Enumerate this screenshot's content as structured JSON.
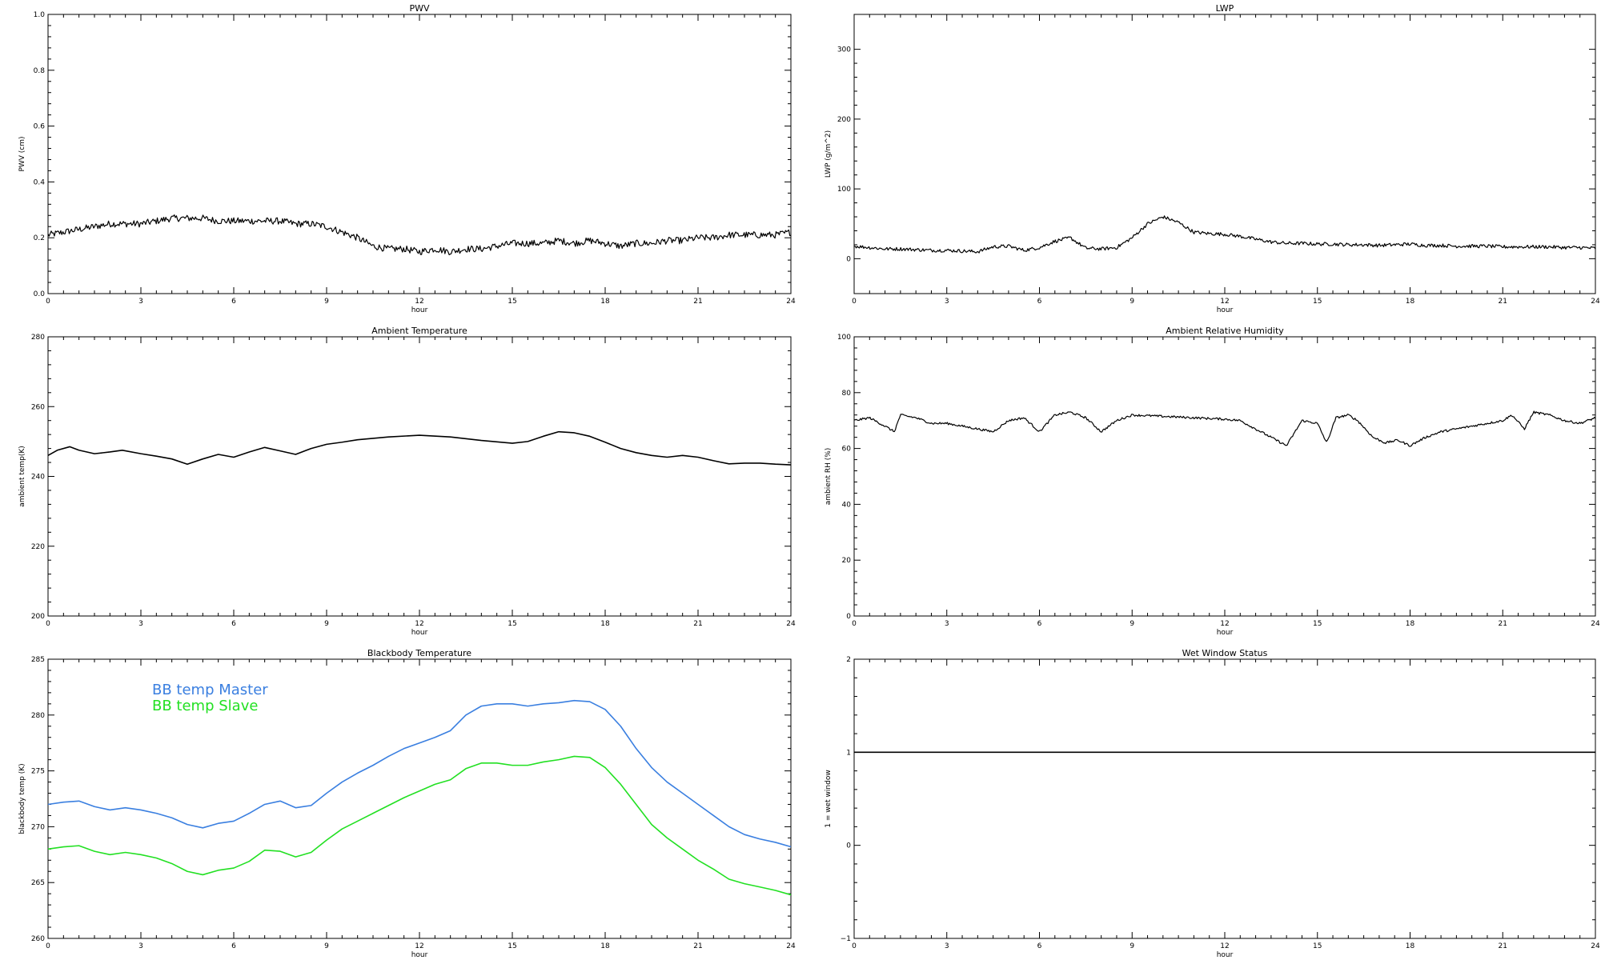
{
  "chart_data": [
    {
      "id": "pwv",
      "type": "line",
      "title": "PWV",
      "xlabel": "hour",
      "ylabel": "PWV (cm)",
      "xlim": [
        0,
        24
      ],
      "ylim": [
        0.0,
        1.0
      ],
      "xticks": [
        0,
        3,
        6,
        9,
        12,
        15,
        18,
        21,
        24
      ],
      "yticks": [
        "0.0",
        "0.2",
        "0.4",
        "0.6",
        "0.8",
        "1.0"
      ],
      "grid": false,
      "noise": 0.012,
      "series": [
        {
          "color": "#000000",
          "x": [
            0,
            0.5,
            1,
            1.5,
            2,
            2.5,
            3,
            3.5,
            4,
            4.5,
            5,
            5.5,
            6,
            6.5,
            7,
            7.5,
            8,
            8.5,
            9,
            9.5,
            10,
            10.5,
            11,
            11.5,
            12,
            12.5,
            13,
            13.5,
            14,
            14.5,
            15,
            15.5,
            16,
            16.5,
            17,
            17.5,
            18,
            18.5,
            19,
            19.5,
            20,
            20.5,
            21,
            21.5,
            22,
            22.5,
            23,
            23.5,
            24
          ],
          "y": [
            0.21,
            0.22,
            0.23,
            0.24,
            0.25,
            0.25,
            0.25,
            0.26,
            0.27,
            0.27,
            0.27,
            0.26,
            0.26,
            0.26,
            0.26,
            0.26,
            0.25,
            0.25,
            0.24,
            0.22,
            0.2,
            0.17,
            0.16,
            0.16,
            0.15,
            0.16,
            0.15,
            0.16,
            0.16,
            0.17,
            0.18,
            0.18,
            0.18,
            0.19,
            0.18,
            0.19,
            0.18,
            0.17,
            0.18,
            0.18,
            0.19,
            0.19,
            0.2,
            0.2,
            0.21,
            0.21,
            0.21,
            0.21,
            0.22
          ]
        }
      ]
    },
    {
      "id": "lwp",
      "type": "line",
      "title": "LWP",
      "xlabel": "hour",
      "ylabel": "LWP (g/m^2)",
      "xlim": [
        0,
        24
      ],
      "ylim": [
        -50,
        350
      ],
      "xticks": [
        0,
        3,
        6,
        9,
        12,
        15,
        18,
        21,
        24
      ],
      "yticks": [
        "0",
        "100",
        "200",
        "300"
      ],
      "grid": false,
      "noise": 2.5,
      "series": [
        {
          "color": "#000000",
          "x": [
            0,
            0.5,
            1,
            1.5,
            2,
            2.5,
            3,
            3.5,
            4,
            4.5,
            5,
            5.5,
            6,
            6.5,
            7,
            7.5,
            8,
            8.5,
            9,
            9.5,
            10,
            10.5,
            11,
            11.5,
            12,
            12.5,
            13,
            13.5,
            14,
            14.5,
            15,
            15.5,
            16,
            16.5,
            17,
            17.5,
            18,
            18.5,
            19,
            19.5,
            20,
            20.5,
            21,
            21.5,
            22,
            22.5,
            23,
            23.5,
            24
          ],
          "y": [
            18,
            16,
            14,
            14,
            13,
            12,
            12,
            11,
            10,
            17,
            18,
            12,
            16,
            25,
            30,
            15,
            14,
            16,
            30,
            50,
            60,
            52,
            38,
            36,
            35,
            32,
            28,
            24,
            22,
            22,
            21,
            21,
            20,
            20,
            19,
            20,
            21,
            19,
            19,
            18,
            18,
            18,
            17,
            17,
            17,
            17,
            16,
            16,
            15
          ]
        }
      ]
    },
    {
      "id": "ambient-temperature",
      "type": "line",
      "title": "Ambient Temperature",
      "xlabel": "hour",
      "ylabel": "ambient temp(K)",
      "xlim": [
        0,
        24
      ],
      "ylim": [
        200,
        280
      ],
      "xticks": [
        0,
        3,
        6,
        9,
        12,
        15,
        18,
        21,
        24
      ],
      "yticks": [
        "200",
        "220",
        "240",
        "260",
        "280"
      ],
      "grid": false,
      "noise": 0,
      "series": [
        {
          "color": "#000000",
          "x": [
            0,
            0.3,
            0.7,
            1.0,
            1.5,
            2.0,
            2.4,
            3.0,
            3.5,
            4.0,
            4.5,
            5.0,
            5.5,
            6.0,
            6.5,
            7.0,
            7.5,
            8.0,
            8.5,
            9.0,
            9.5,
            10.0,
            11.0,
            12.0,
            13.0,
            14.0,
            15.0,
            15.5,
            16.0,
            16.5,
            17.0,
            17.5,
            18.0,
            18.5,
            19.0,
            19.5,
            20.0,
            20.5,
            21.0,
            21.5,
            22.0,
            22.5,
            23.0,
            23.5,
            24.0
          ],
          "y": [
            246,
            247.5,
            248.5,
            247.5,
            246.5,
            247,
            247.5,
            246.5,
            245.8,
            245,
            243.5,
            245,
            246.3,
            245.5,
            247,
            248.3,
            247.3,
            246.3,
            248,
            249.2,
            249.8,
            250.5,
            251.3,
            251.8,
            251.3,
            250.3,
            249.5,
            250,
            251.5,
            252.8,
            252.5,
            251.5,
            249.8,
            248,
            246.8,
            246,
            245.5,
            246,
            245.5,
            244.5,
            243.6,
            243.8,
            243.8,
            243.5,
            243.3
          ]
        }
      ]
    },
    {
      "id": "ambient-relative-humidity",
      "type": "line",
      "title": "Ambient Relative Humidity",
      "xlabel": "hour",
      "ylabel": "ambient RH (%)",
      "xlim": [
        0,
        24
      ],
      "ylim": [
        0,
        100
      ],
      "xticks": [
        0,
        3,
        6,
        9,
        12,
        15,
        18,
        21,
        24
      ],
      "yticks": [
        "0",
        "20",
        "40",
        "60",
        "80",
        "100"
      ],
      "grid": false,
      "noise": 0.4,
      "series": [
        {
          "color": "#000000",
          "x": [
            0,
            0.5,
            1.0,
            1.3,
            1.5,
            2.0,
            2.5,
            3.0,
            3.5,
            4.0,
            4.5,
            5.0,
            5.5,
            6.0,
            6.5,
            7.0,
            7.5,
            8.0,
            8.5,
            9.0,
            10.0,
            11.0,
            12.0,
            12.5,
            13.0,
            13.5,
            14.0,
            14.5,
            15.0,
            15.3,
            15.6,
            16.0,
            16.3,
            16.8,
            17.2,
            17.6,
            18.0,
            18.5,
            19.0,
            19.5,
            20.0,
            20.5,
            21.0,
            21.3,
            21.7,
            22.0,
            22.5,
            23.0,
            23.5,
            24.0
          ],
          "y": [
            70,
            71,
            68,
            66,
            72,
            71,
            69,
            69,
            68,
            67,
            66,
            70,
            71,
            66,
            72,
            73,
            71,
            66,
            70,
            72,
            71.5,
            71,
            70.5,
            70,
            67,
            64,
            61,
            70,
            69,
            62,
            71,
            72,
            70,
            64,
            62,
            63,
            61,
            64,
            66,
            67,
            68,
            69,
            70,
            72,
            67,
            73,
            72,
            70,
            69,
            71
          ]
        }
      ]
    },
    {
      "id": "blackbody-temperature",
      "type": "line",
      "title": "Blackbody Temperature",
      "xlabel": "hour",
      "ylabel": "blackbody temp (K)",
      "xlim": [
        0,
        24
      ],
      "ylim": [
        260,
        285
      ],
      "xticks": [
        0,
        3,
        6,
        9,
        12,
        15,
        18,
        21,
        24
      ],
      "yticks": [
        "260",
        "265",
        "270",
        "275",
        "280",
        "285"
      ],
      "grid": false,
      "noise": 0,
      "legend": "top-left",
      "series": [
        {
          "name": "BB temp Master",
          "color": "#3a7fe0",
          "x": [
            0,
            0.5,
            1,
            1.5,
            2,
            2.5,
            3,
            3.5,
            4,
            4.5,
            5,
            5.5,
            6,
            6.5,
            7,
            7.5,
            8,
            8.5,
            9,
            9.5,
            10,
            10.5,
            11,
            11.5,
            12,
            12.5,
            13,
            13.5,
            14,
            14.5,
            15,
            15.5,
            16,
            16.5,
            17,
            17.5,
            18,
            18.5,
            19,
            19.5,
            20,
            20.5,
            21,
            21.5,
            22,
            22.5,
            23,
            23.5,
            24
          ],
          "y": [
            272,
            272.2,
            272.3,
            271.8,
            271.5,
            271.7,
            271.5,
            271.2,
            270.8,
            270.2,
            269.9,
            270.3,
            270.5,
            271.2,
            272,
            272.3,
            271.7,
            271.9,
            273,
            274,
            274.8,
            275.5,
            276.3,
            277,
            277.5,
            278,
            278.6,
            280,
            280.8,
            281,
            281,
            280.8,
            281,
            281.1,
            281.3,
            281.2,
            280.5,
            279,
            277,
            275.3,
            274,
            273,
            272,
            271,
            270,
            269.3,
            268.9,
            268.6,
            268.2
          ]
        },
        {
          "name": "BB temp Slave",
          "color": "#22e022",
          "x": [
            0,
            0.5,
            1,
            1.5,
            2,
            2.5,
            3,
            3.5,
            4,
            4.5,
            5,
            5.5,
            6,
            6.5,
            7,
            7.5,
            8,
            8.5,
            9,
            9.5,
            10,
            10.5,
            11,
            11.5,
            12,
            12.5,
            13,
            13.5,
            14,
            14.5,
            15,
            15.5,
            16,
            16.5,
            17,
            17.5,
            18,
            18.5,
            19,
            19.5,
            20,
            20.5,
            21,
            21.5,
            22,
            22.5,
            23,
            23.5,
            24
          ],
          "y": [
            268,
            268.2,
            268.3,
            267.8,
            267.5,
            267.7,
            267.5,
            267.2,
            266.7,
            266,
            265.7,
            266.1,
            266.3,
            266.9,
            267.9,
            267.8,
            267.3,
            267.7,
            268.8,
            269.8,
            270.5,
            271.2,
            271.9,
            272.6,
            273.2,
            273.8,
            274.2,
            275.2,
            275.7,
            275.7,
            275.5,
            275.5,
            275.8,
            276,
            276.3,
            276.2,
            275.3,
            273.8,
            272,
            270.2,
            269,
            268,
            267,
            266.2,
            265.3,
            264.9,
            264.6,
            264.3,
            263.9
          ]
        }
      ]
    },
    {
      "id": "wet-window-status",
      "type": "line",
      "title": "Wet Window Status",
      "xlabel": "hour",
      "ylabel": "1 = wet window",
      "xlim": [
        0,
        24
      ],
      "ylim": [
        -1,
        2
      ],
      "xticks": [
        0,
        3,
        6,
        9,
        12,
        15,
        18,
        21,
        24
      ],
      "yticks": [
        "−1",
        "0",
        "1",
        "2"
      ],
      "grid": false,
      "noise": 0,
      "series": [
        {
          "color": "#000000",
          "x": [
            0,
            24
          ],
          "y": [
            1,
            1
          ]
        }
      ]
    }
  ]
}
